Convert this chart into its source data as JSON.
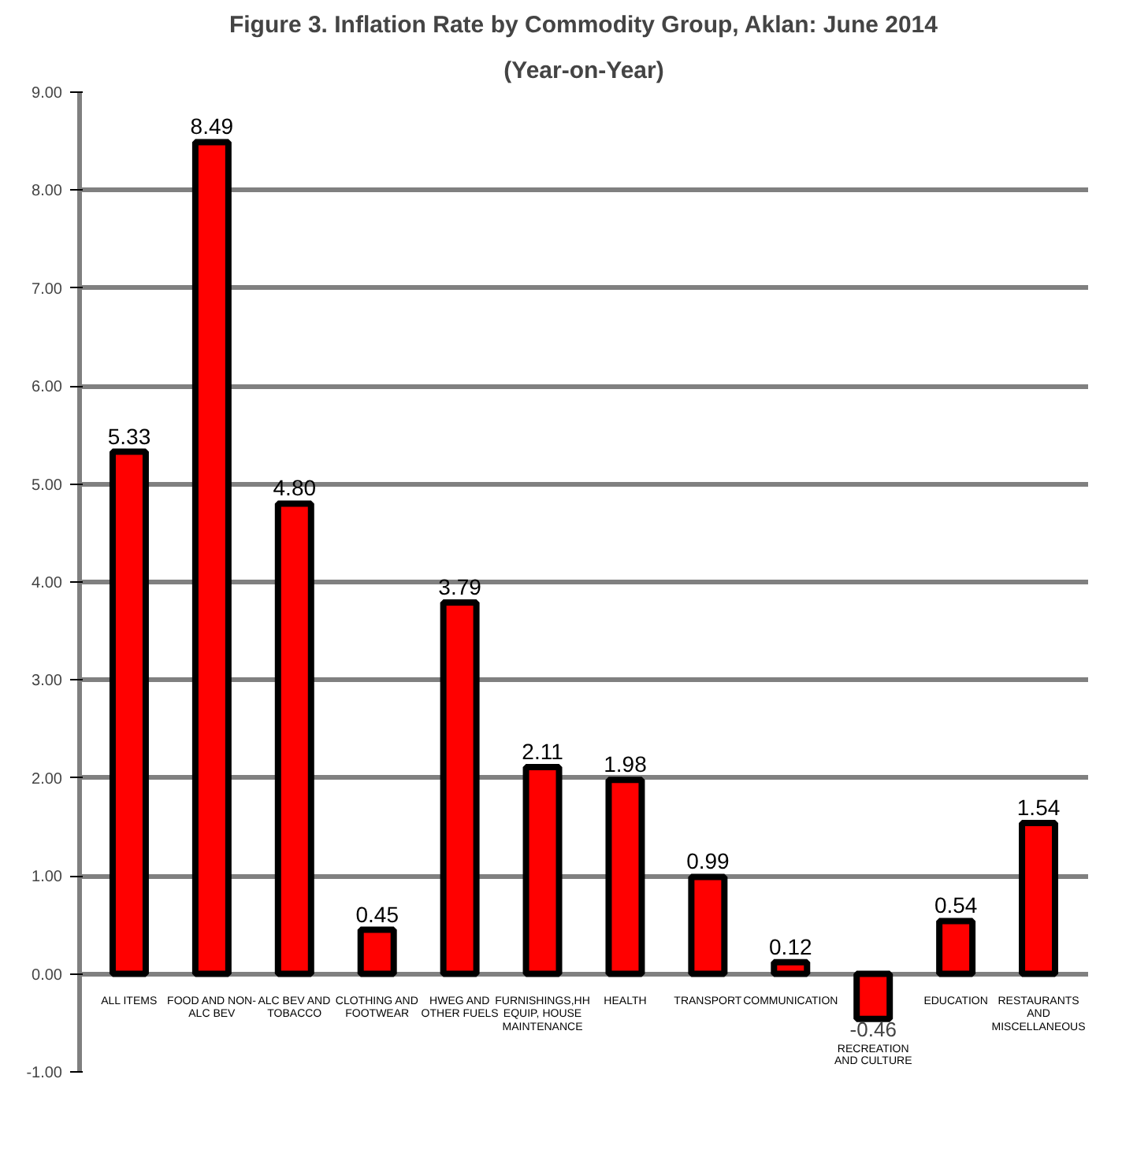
{
  "chart_data": {
    "type": "bar",
    "title": "Figure 3. Inflation Rate by Commodity Group, Aklan: June 2014",
    "subtitle": "(Year-on-Year)",
    "categories": [
      "ALL ITEMS",
      "FOOD AND NON-\nALC BEV",
      "ALC BEV AND\nTOBACCO",
      "CLOTHING AND\nFOOTWEAR",
      "HWEG AND\nOTHER FUELS",
      "FURNISHINGS,HH\nEQUIP, HOUSE\nMAINTENANCE",
      "HEALTH",
      "TRANSPORT",
      "COMMUNICATION",
      "RECREATION\nAND CULTURE",
      "EDUCATION",
      "RESTAURANTS\nAND\nMISCELLANEOUS"
    ],
    "values": [
      5.33,
      8.49,
      4.8,
      0.45,
      3.79,
      2.11,
      1.98,
      0.99,
      0.12,
      -0.46,
      0.54,
      1.54
    ],
    "value_labels": [
      "5.33",
      "8.49",
      "4.80",
      "0.45",
      "3.79",
      "2.11",
      "1.98",
      "0.99",
      "0.12",
      "-0.46",
      "0.54",
      "1.54"
    ],
    "color": "#ff0000",
    "ylim": [
      -1,
      9
    ],
    "yticks": [
      {
        "value": -1,
        "label": "-1.00"
      },
      {
        "value": 0,
        "label": "0.00"
      },
      {
        "value": 1,
        "label": "1.00"
      },
      {
        "value": 2,
        "label": "2.00"
      },
      {
        "value": 3,
        "label": "3.00"
      },
      {
        "value": 4,
        "label": "4.00"
      },
      {
        "value": 5,
        "label": "5.00"
      },
      {
        "value": 6,
        "label": "6.00"
      },
      {
        "value": 7,
        "label": "7.00"
      },
      {
        "value": 8,
        "label": "8.00"
      },
      {
        "value": 9,
        "label": "9.00"
      }
    ],
    "grid": "y"
  }
}
